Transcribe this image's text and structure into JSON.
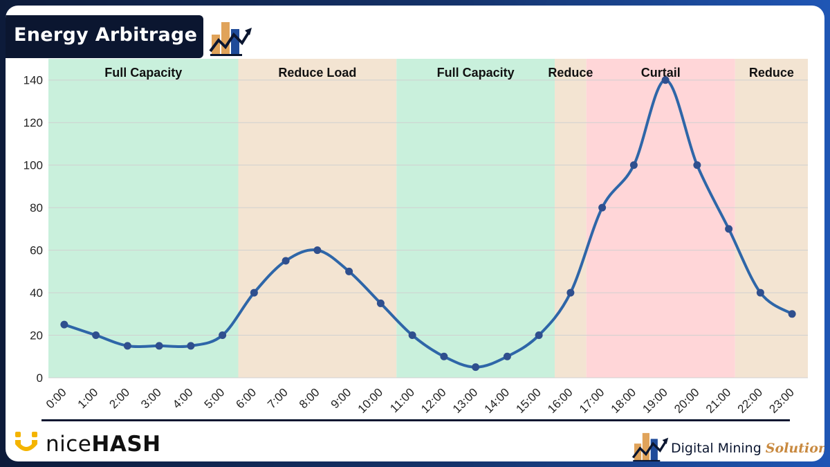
{
  "header": {
    "title": "Energy Arbitrage"
  },
  "footer": {
    "nicehash_light": "nice",
    "nicehash_bold": "HASH",
    "dms_main": "Digital Mining ",
    "dms_accent": "Solutions"
  },
  "colors": {
    "line": "#2e66a8",
    "marker": "#2f4f8e",
    "full_capacity": "#c9f0dc",
    "reduce": "#f3e4d2",
    "curtail": "#ffd6d8",
    "grid": "#d0d0d0"
  },
  "chart_data": {
    "type": "line",
    "title": "",
    "xlabel": "",
    "ylabel": "",
    "ylim": [
      0,
      150
    ],
    "yticks": [
      0,
      20,
      40,
      60,
      80,
      100,
      120,
      140
    ],
    "grid": true,
    "categories": [
      "0:00",
      "1:00",
      "2:00",
      "3:00",
      "4:00",
      "5:00",
      "6:00",
      "7:00",
      "8:00",
      "9:00",
      "10:00",
      "11:00",
      "12:00",
      "13:00",
      "14:00",
      "15:00",
      "16:00",
      "17:00",
      "18:00",
      "19:00",
      "20:00",
      "21:00",
      "22:00",
      "23:00"
    ],
    "series": [
      {
        "values": [
          25,
          20,
          15,
          15,
          15,
          20,
          40,
          55,
          60,
          50,
          35,
          20,
          10,
          5,
          10,
          20,
          40,
          80,
          100,
          140,
          100,
          70,
          40,
          30
        ]
      }
    ],
    "bands": [
      {
        "label": "Full Capacity",
        "start": -0.5,
        "end": 5.5,
        "type": "full_capacity"
      },
      {
        "label": "Reduce Load",
        "start": 5.5,
        "end": 10.5,
        "type": "reduce"
      },
      {
        "label": "Full Capacity",
        "start": 10.5,
        "end": 15.5,
        "type": "full_capacity"
      },
      {
        "label": "Reduce",
        "start": 15.5,
        "end": 16.5,
        "type": "reduce"
      },
      {
        "label": "Curtail",
        "start": 16.5,
        "end": 21.2,
        "type": "curtail"
      },
      {
        "label": "Reduce",
        "start": 21.2,
        "end": 23.5,
        "type": "reduce"
      }
    ]
  }
}
